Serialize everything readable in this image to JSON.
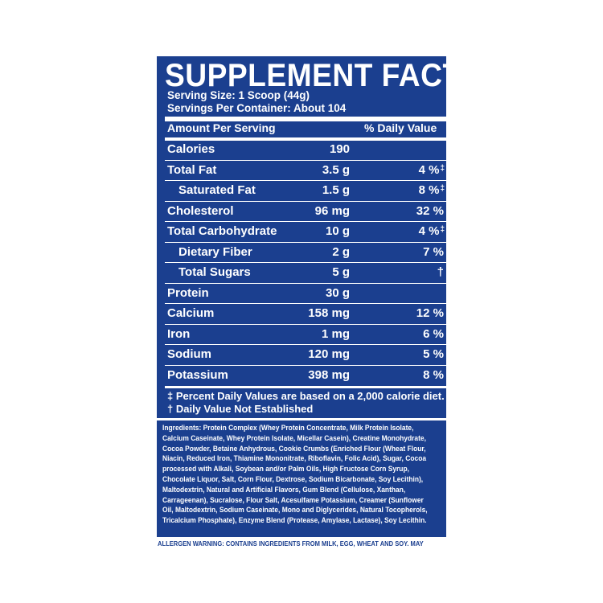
{
  "title": "SUPPLEMENT FACTS",
  "serving_size": "Serving Size: 1 Scoop (44g)",
  "servings_per_container": "Servings Per Container: About 104",
  "header": {
    "left": "Amount Per Serving",
    "right": "% Daily Value"
  },
  "rows": [
    {
      "name": "Calories",
      "amount": "190",
      "dv": "",
      "mark": "",
      "sub": false
    },
    {
      "name": "Total Fat",
      "amount": "3.5 g",
      "dv": "4 %",
      "mark": "‡",
      "sub": false
    },
    {
      "name": "Saturated Fat",
      "amount": "1.5 g",
      "dv": "8 %",
      "mark": "‡",
      "sub": true
    },
    {
      "name": "Cholesterol",
      "amount": "96 mg",
      "dv": "32 %",
      "mark": "",
      "sub": false
    },
    {
      "name": "Total Carbohydrate",
      "amount": "10 g",
      "dv": "4 %",
      "mark": "‡",
      "sub": false
    },
    {
      "name": "Dietary Fiber",
      "amount": "2 g",
      "dv": "7 %",
      "mark": "",
      "sub": true
    },
    {
      "name": "Total Sugars",
      "amount": "5 g",
      "dv": "†",
      "mark": "",
      "sub": true
    },
    {
      "name": "Protein",
      "amount": "30 g",
      "dv": "",
      "mark": "",
      "sub": false
    },
    {
      "name": "Calcium",
      "amount": "158 mg",
      "dv": "12 %",
      "mark": "",
      "sub": false
    },
    {
      "name": "Iron",
      "amount": "1 mg",
      "dv": "6 %",
      "mark": "",
      "sub": false
    },
    {
      "name": "Sodium",
      "amount": "120 mg",
      "dv": "5 %",
      "mark": "",
      "sub": false
    },
    {
      "name": "Potassium",
      "amount": "398 mg",
      "dv": "8 %",
      "mark": "",
      "sub": false
    }
  ],
  "footnotes": [
    "‡ Percent Daily Values are based on a 2,000 calorie diet.",
    "† Daily Value Not Established"
  ],
  "ingredients_lines": [
    "Ingredients: Protein Complex (Whey Protein Concentrate, Milk Protein Isolate,",
    "Calcium Caseinate, Whey Protein Isolate, Micellar Casein), Creatine Monohydrate,",
    "Cocoa Powder, Betaine Anhydrous, Cookie Crumbs (Enriched Flour (Wheat Flour,",
    "Niacin, Reduced Iron, Thiamine Mononitrate, Riboflavin, Folic Acid), Sugar, Cocoa",
    "processed with Alkali, Soybean and/or Palm Oils, High Fructose Corn Syrup,",
    "Chocolate Liquor, Salt, Corn Flour, Dextrose, Sodium Bicarbonate, Soy Lecithin),",
    "Maltodextrin, Natural and Artificial Flavors, Gum Blend (Cellulose, Xanthan,",
    "Carrageenan), Sucralose, Flour Salt, Acesulfame Potassium, Creamer (Sunflower",
    "Oil, Maltodextrin, Sodium Caseinate, Mono and Diglycerides, Natural Tocopherols,",
    "Tricalcium Phosphate), Enzyme Blend (Protease, Amylase, Lactase), Soy Lecithin."
  ],
  "allergen_warning": "ALLERGEN WARNING: CONTAINS INGREDIENTS FROM MILK, EGG, WHEAT AND SOY. MAY",
  "colors": {
    "panel": "#1b3f8f",
    "text": "#ffffff",
    "background": "#ffffff"
  }
}
